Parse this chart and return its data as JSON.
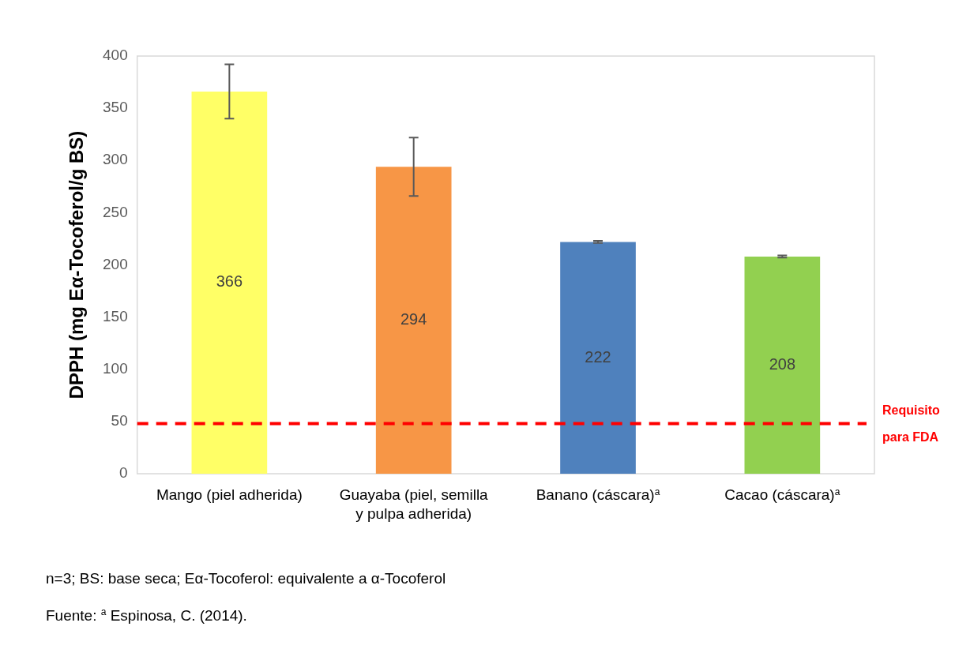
{
  "chart_data": {
    "type": "bar",
    "ylabel": "DPPH (mg Eα-Tocoferol/g BS)",
    "categories": [
      "Mango (piel adherida)",
      "Guayaba (piel, semilla y pulpa adherida)",
      "Banano (cáscara)$^{a}$",
      "Cacao (cáscara)$^{a}$"
    ],
    "values": [
      366,
      294,
      222,
      208
    ],
    "colors": [
      "#ffff66",
      "#f79646",
      "#4f81bd",
      "#92d050"
    ],
    "errors": [
      26,
      28,
      1,
      1
    ],
    "data_labels": true,
    "ylim": [
      0,
      400
    ],
    "yticks": [
      0,
      50,
      100,
      150,
      200,
      250,
      300,
      350,
      400
    ],
    "grid": false,
    "legend": false,
    "ref_lines": [
      {
        "axis": "y",
        "value": 48,
        "label": "Requisito para FDA",
        "color": "#ff0000",
        "line_style": "dashed"
      }
    ],
    "annotations": [
      "n=3; BS: base seca; Eα-Tocoferol: equivalente a α-Tocoferol",
      "Fuente: $^{a}$ Espinosa, C. (2014)."
    ]
  }
}
